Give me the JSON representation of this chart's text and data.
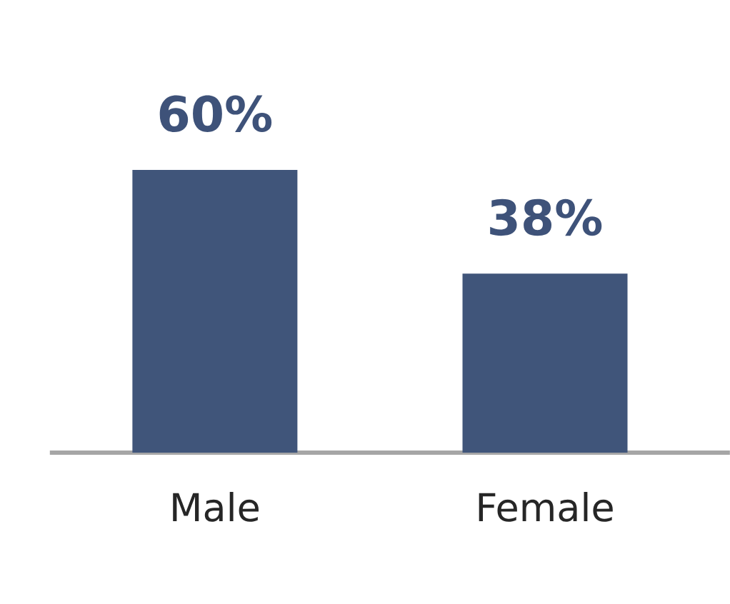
{
  "chart_data": {
    "type": "bar",
    "categories": [
      "Male",
      "Female"
    ],
    "values": [
      60,
      38
    ],
    "value_labels": [
      "60%",
      "38%"
    ],
    "color": "#40557a"
  }
}
